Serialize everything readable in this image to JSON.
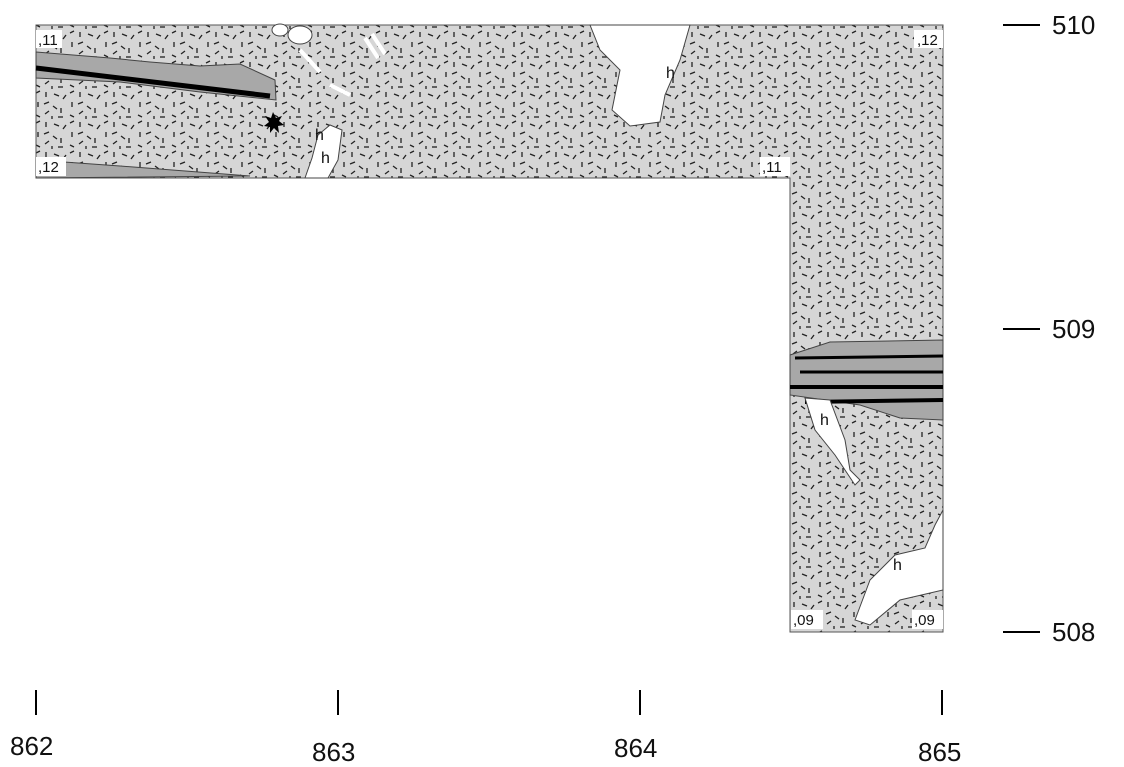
{
  "axes": {
    "y_labels": [
      "510",
      "509",
      "508"
    ],
    "x_labels": [
      "862",
      "863",
      "864",
      "865"
    ]
  },
  "elevations": [
    ",11",
    ",12",
    ",12",
    ",11",
    ",09",
    ",09"
  ],
  "features": [
    "h",
    "h",
    "h",
    "h",
    "h"
  ]
}
